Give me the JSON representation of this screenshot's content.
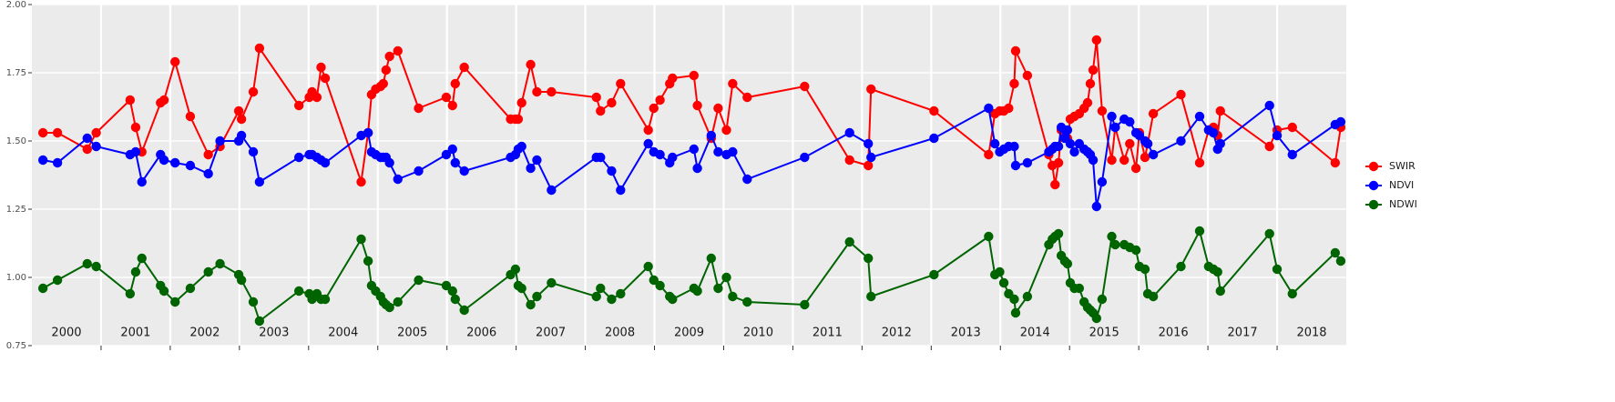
{
  "chart_data": {
    "type": "line",
    "x": [
      2000.16,
      2000.37,
      2000.8,
      2000.93,
      2001.42,
      2001.5,
      2001.59,
      2001.86,
      2001.91,
      2002.07,
      2002.29,
      2002.55,
      2002.72,
      2002.99,
      2003.03,
      2003.2,
      2003.29,
      2003.86,
      2004.01,
      2004.05,
      2004.12,
      2004.18,
      2004.24,
      2004.76,
      2004.86,
      2004.91,
      2004.97,
      2005.04,
      2005.08,
      2005.12,
      2005.17,
      2005.29,
      2005.59,
      2005.99,
      2006.08,
      2006.12,
      2006.25,
      2006.92,
      2006.99,
      2007.03,
      2007.08,
      2007.21,
      2007.3,
      2007.51,
      2008.16,
      2008.22,
      2008.38,
      2008.51,
      2008.91,
      2008.99,
      2009.08,
      2009.22,
      2009.26,
      2009.57,
      2009.62,
      2009.82,
      2009.92,
      2010.04,
      2010.13,
      2010.34,
      2011.17,
      2011.82,
      2012.09,
      2012.13,
      2013.04,
      2013.83,
      2013.92,
      2013.99,
      2014.05,
      2014.12,
      2014.2,
      2014.22,
      2014.39,
      2014.7,
      2014.75,
      2014.79,
      2014.84,
      2014.88,
      2014.93,
      2014.97,
      2015.01,
      2015.07,
      2015.14,
      2015.21,
      2015.26,
      2015.3,
      2015.34,
      2015.39,
      2015.47,
      2015.61,
      2015.66,
      2015.79,
      2015.87,
      2015.96,
      2016.01,
      2016.09,
      2016.13,
      2016.21,
      2016.61,
      2016.88,
      2017.01,
      2017.08,
      2017.14,
      2017.18,
      2017.89,
      2018.0,
      2018.22,
      2018.84,
      2018.92
    ],
    "series": [
      {
        "name": "SWIR",
        "color": "#ff0000",
        "values": [
          1.53,
          1.53,
          1.47,
          1.53,
          1.65,
          1.55,
          1.46,
          1.64,
          1.65,
          1.79,
          1.59,
          1.45,
          1.48,
          1.61,
          1.58,
          1.68,
          1.84,
          1.63,
          1.66,
          1.68,
          1.66,
          1.77,
          1.73,
          1.35,
          1.53,
          1.67,
          1.69,
          1.7,
          1.71,
          1.76,
          1.81,
          1.83,
          1.62,
          1.66,
          1.63,
          1.71,
          1.77,
          1.58,
          1.58,
          1.58,
          1.64,
          1.78,
          1.68,
          1.68,
          1.66,
          1.61,
          1.64,
          1.71,
          1.54,
          1.62,
          1.65,
          1.71,
          1.73,
          1.74,
          1.63,
          1.51,
          1.62,
          1.54,
          1.71,
          1.66,
          1.7,
          1.43,
          1.41,
          1.69,
          1.61,
          1.45,
          1.6,
          1.61,
          1.61,
          1.62,
          1.71,
          1.83,
          1.74,
          1.45,
          1.41,
          1.34,
          1.42,
          1.54,
          1.52,
          1.51,
          1.58,
          1.59,
          1.6,
          1.62,
          1.64,
          1.71,
          1.76,
          1.87,
          1.61,
          1.43,
          1.55,
          1.43,
          1.49,
          1.4,
          1.53,
          1.44,
          1.49,
          1.6,
          1.67,
          1.42,
          1.54,
          1.55,
          1.52,
          1.61,
          1.48,
          1.54,
          1.55,
          1.42,
          1.55
        ]
      },
      {
        "name": "NDVI",
        "color": "#0000ff",
        "values": [
          1.43,
          1.42,
          1.51,
          1.48,
          1.45,
          1.46,
          1.35,
          1.45,
          1.43,
          1.42,
          1.41,
          1.38,
          1.5,
          1.5,
          1.52,
          1.46,
          1.35,
          1.44,
          1.45,
          1.45,
          1.44,
          1.43,
          1.42,
          1.52,
          1.53,
          1.46,
          1.45,
          1.44,
          1.44,
          1.44,
          1.42,
          1.36,
          1.39,
          1.45,
          1.47,
          1.42,
          1.39,
          1.44,
          1.45,
          1.47,
          1.48,
          1.4,
          1.43,
          1.32,
          1.44,
          1.44,
          1.39,
          1.32,
          1.49,
          1.46,
          1.45,
          1.42,
          1.44,
          1.47,
          1.4,
          1.52,
          1.46,
          1.45,
          1.46,
          1.36,
          1.44,
          1.53,
          1.49,
          1.44,
          1.51,
          1.62,
          1.49,
          1.46,
          1.47,
          1.48,
          1.48,
          1.41,
          1.42,
          1.46,
          1.47,
          1.48,
          1.48,
          1.55,
          1.51,
          1.54,
          1.49,
          1.46,
          1.49,
          1.47,
          1.46,
          1.45,
          1.43,
          1.26,
          1.35,
          1.59,
          1.55,
          1.58,
          1.57,
          1.53,
          1.52,
          1.5,
          1.49,
          1.45,
          1.5,
          1.59,
          1.54,
          1.53,
          1.47,
          1.49,
          1.63,
          1.52,
          1.45,
          1.56,
          1.57
        ]
      },
      {
        "name": "NDWI",
        "color": "#006400",
        "values": [
          0.96,
          0.99,
          1.05,
          1.04,
          0.94,
          1.02,
          1.07,
          0.97,
          0.95,
          0.91,
          0.96,
          1.02,
          1.05,
          1.01,
          0.99,
          0.91,
          0.84,
          0.95,
          0.94,
          0.92,
          0.94,
          0.92,
          0.92,
          1.14,
          1.06,
          0.97,
          0.95,
          0.93,
          0.91,
          0.9,
          0.89,
          0.91,
          0.99,
          0.97,
          0.95,
          0.92,
          0.88,
          1.01,
          1.03,
          0.97,
          0.96,
          0.9,
          0.93,
          0.98,
          0.93,
          0.96,
          0.92,
          0.94,
          1.04,
          0.99,
          0.97,
          0.93,
          0.92,
          0.96,
          0.95,
          1.07,
          0.96,
          1.0,
          0.93,
          0.91,
          0.9,
          1.13,
          1.07,
          0.93,
          1.01,
          1.15,
          1.01,
          1.02,
          0.98,
          0.94,
          0.92,
          0.87,
          0.93,
          1.12,
          1.14,
          1.15,
          1.16,
          1.08,
          1.06,
          1.05,
          0.98,
          0.96,
          0.96,
          0.91,
          0.89,
          0.88,
          0.87,
          0.85,
          0.92,
          1.15,
          1.12,
          1.12,
          1.11,
          1.1,
          1.04,
          1.03,
          0.94,
          0.93,
          1.04,
          1.17,
          1.04,
          1.03,
          1.02,
          0.95,
          1.16,
          1.03,
          0.94,
          1.09,
          1.06
        ]
      }
    ],
    "xlim": [
      2000,
      2019
    ],
    "xticks": [
      2001,
      2002,
      2003,
      2004,
      2005,
      2006,
      2007,
      2008,
      2009,
      2010,
      2011,
      2012,
      2013,
      2014,
      2015,
      2016,
      2017,
      2018
    ],
    "year_labels": [
      {
        "value": 2000.5,
        "label": "2000"
      },
      {
        "value": 2001.5,
        "label": "2001"
      },
      {
        "value": 2002.5,
        "label": "2002"
      },
      {
        "value": 2003.5,
        "label": "2003"
      },
      {
        "value": 2004.5,
        "label": "2004"
      },
      {
        "value": 2005.5,
        "label": "2005"
      },
      {
        "value": 2006.5,
        "label": "2006"
      },
      {
        "value": 2007.5,
        "label": "2007"
      },
      {
        "value": 2008.5,
        "label": "2008"
      },
      {
        "value": 2009.5,
        "label": "2009"
      },
      {
        "value": 2010.5,
        "label": "2010"
      },
      {
        "value": 2011.5,
        "label": "2011"
      },
      {
        "value": 2012.5,
        "label": "2012"
      },
      {
        "value": 2013.5,
        "label": "2013"
      },
      {
        "value": 2014.5,
        "label": "2014"
      },
      {
        "value": 2015.5,
        "label": "2015"
      },
      {
        "value": 2016.5,
        "label": "2016"
      },
      {
        "value": 2017.5,
        "label": "2017"
      },
      {
        "value": 2018.5,
        "label": "2018"
      }
    ],
    "ylim": [
      0.75,
      2.0
    ],
    "yticks": [
      0.75,
      {
        "value": 1.0,
        "label": "1.00"
      },
      1.25,
      {
        "value": 1.5,
        "label": "1.50"
      },
      1.75,
      {
        "value": 2.0,
        "label": "2.00"
      }
    ],
    "grid": true,
    "legend": "right"
  }
}
